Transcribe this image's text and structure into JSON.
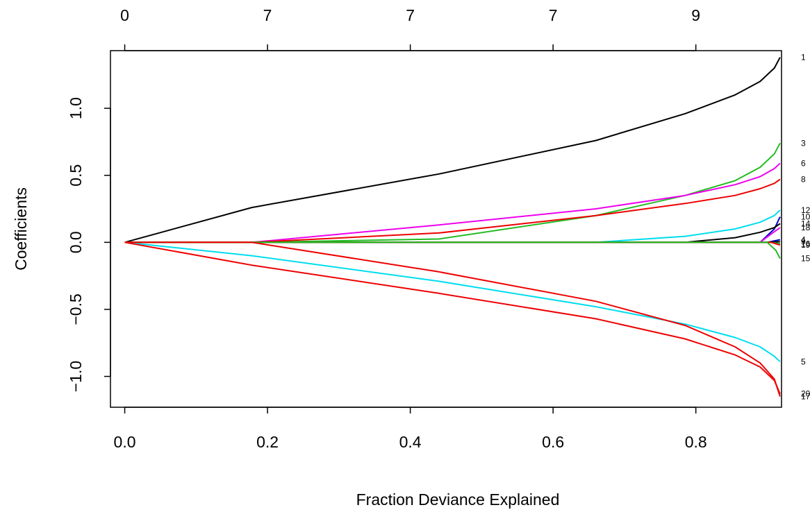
{
  "chart_data": {
    "type": "line",
    "title": "",
    "xlabel": "Fraction Deviance Explained",
    "ylabel": "Coefficients",
    "xlim": [
      -0.02,
      0.92
    ],
    "ylim": [
      -1.23,
      1.43
    ],
    "x_ticks": [
      0.0,
      0.2,
      0.4,
      0.6,
      0.8
    ],
    "x_tick_labels": [
      "0.0",
      "0.2",
      "0.4",
      "0.6",
      "0.8"
    ],
    "y_ticks": [
      -1.0,
      -0.5,
      0.0,
      0.5,
      1.0
    ],
    "y_tick_labels": [
      "−1.0",
      "−0.5",
      "0.0",
      "0.5",
      "1.0"
    ],
    "top_axis": {
      "ticks": [
        0.0,
        0.2,
        0.4,
        0.6,
        0.8
      ],
      "labels": [
        "0",
        "7",
        "7",
        "7",
        "9"
      ]
    },
    "grid": false,
    "legend": "none",
    "series": [
      {
        "label": "1",
        "color": "#000000",
        "points": [
          [
            0,
            0
          ],
          [
            0.178,
            0.26
          ],
          [
            0.44,
            0.51
          ],
          [
            0.66,
            0.76
          ],
          [
            0.785,
            0.96
          ],
          [
            0.855,
            1.1
          ],
          [
            0.89,
            1.2
          ],
          [
            0.91,
            1.3
          ],
          [
            0.918,
            1.38
          ]
        ]
      },
      {
        "label": "3",
        "color": "#22bb22",
        "points": [
          [
            0,
            0
          ],
          [
            0.178,
            0
          ],
          [
            0.44,
            0.025
          ],
          [
            0.66,
            0.2
          ],
          [
            0.785,
            0.35
          ],
          [
            0.855,
            0.46
          ],
          [
            0.89,
            0.56
          ],
          [
            0.91,
            0.66
          ],
          [
            0.918,
            0.74
          ]
        ]
      },
      {
        "label": "6",
        "color": "#ee00ee",
        "points": [
          [
            0,
            0
          ],
          [
            0.178,
            0
          ],
          [
            0.44,
            0.13
          ],
          [
            0.66,
            0.25
          ],
          [
            0.785,
            0.35
          ],
          [
            0.855,
            0.43
          ],
          [
            0.89,
            0.49
          ],
          [
            0.91,
            0.55
          ],
          [
            0.918,
            0.59
          ]
        ]
      },
      {
        "label": "8",
        "color": "#ee0000",
        "points": [
          [
            0,
            0
          ],
          [
            0.178,
            0
          ],
          [
            0.44,
            0.07
          ],
          [
            0.66,
            0.2
          ],
          [
            0.785,
            0.29
          ],
          [
            0.855,
            0.35
          ],
          [
            0.89,
            0.4
          ],
          [
            0.91,
            0.44
          ],
          [
            0.918,
            0.47
          ]
        ]
      },
      {
        "label": "12",
        "color": "#00ddee",
        "points": [
          [
            0,
            0
          ],
          [
            0.66,
            0
          ],
          [
            0.785,
            0.045
          ],
          [
            0.855,
            0.1
          ],
          [
            0.89,
            0.15
          ],
          [
            0.91,
            0.2
          ],
          [
            0.918,
            0.24
          ]
        ]
      },
      {
        "label": "10",
        "color": "#0000cc",
        "points": [
          [
            0,
            0
          ],
          [
            0.89,
            0
          ],
          [
            0.91,
            0.1
          ],
          [
            0.918,
            0.19
          ]
        ]
      },
      {
        "label": "14",
        "color": "#000000",
        "points": [
          [
            0,
            0
          ],
          [
            0.785,
            0
          ],
          [
            0.855,
            0.035
          ],
          [
            0.89,
            0.075
          ],
          [
            0.91,
            0.11
          ],
          [
            0.918,
            0.14
          ]
        ]
      },
      {
        "label": "18",
        "color": "#ee00ee",
        "points": [
          [
            0,
            0
          ],
          [
            0.89,
            0
          ],
          [
            0.905,
            0.06
          ],
          [
            0.918,
            0.11
          ]
        ]
      },
      {
        "label": "4",
        "color": "#0000cc",
        "points": [
          [
            0,
            0
          ],
          [
            0.9,
            0
          ],
          [
            0.918,
            0.02
          ]
        ]
      },
      {
        "label": "9",
        "color": "#000000",
        "points": [
          [
            0,
            0
          ],
          [
            0.9,
            0
          ],
          [
            0.918,
            0.005
          ]
        ]
      },
      {
        "label": "16",
        "color": "#22bb22",
        "points": [
          [
            0,
            0
          ],
          [
            0.905,
            0
          ],
          [
            0.918,
            -0.01
          ]
        ]
      },
      {
        "label": "19",
        "color": "#ee0000",
        "points": [
          [
            0,
            0
          ],
          [
            0.905,
            0
          ],
          [
            0.918,
            -0.02
          ]
        ]
      },
      {
        "label": "15",
        "color": "#22bb22",
        "points": [
          [
            0,
            0
          ],
          [
            0.9,
            0
          ],
          [
            0.912,
            -0.06
          ],
          [
            0.918,
            -0.12
          ]
        ]
      },
      {
        "label": "5",
        "color": "#00ddee",
        "points": [
          [
            0,
            0
          ],
          [
            0.178,
            -0.1
          ],
          [
            0.44,
            -0.29
          ],
          [
            0.66,
            -0.48
          ],
          [
            0.785,
            -0.61
          ],
          [
            0.855,
            -0.71
          ],
          [
            0.89,
            -0.78
          ],
          [
            0.91,
            -0.85
          ],
          [
            0.918,
            -0.89
          ]
        ]
      },
      {
        "label": "20",
        "color": "#ee0000",
        "points": [
          [
            0,
            0
          ],
          [
            0.178,
            -0.17
          ],
          [
            0.44,
            -0.38
          ],
          [
            0.66,
            -0.57
          ],
          [
            0.785,
            -0.72
          ],
          [
            0.855,
            -0.84
          ],
          [
            0.89,
            -0.93
          ],
          [
            0.91,
            -1.03
          ],
          [
            0.918,
            -1.13
          ]
        ]
      },
      {
        "label": "17",
        "color": "#ee0000",
        "points": [
          [
            0,
            0
          ],
          [
            0.178,
            0
          ],
          [
            0.44,
            -0.22
          ],
          [
            0.66,
            -0.44
          ],
          [
            0.785,
            -0.62
          ],
          [
            0.855,
            -0.78
          ],
          [
            0.89,
            -0.9
          ],
          [
            0.91,
            -1.02
          ],
          [
            0.918,
            -1.15
          ]
        ]
      }
    ]
  }
}
